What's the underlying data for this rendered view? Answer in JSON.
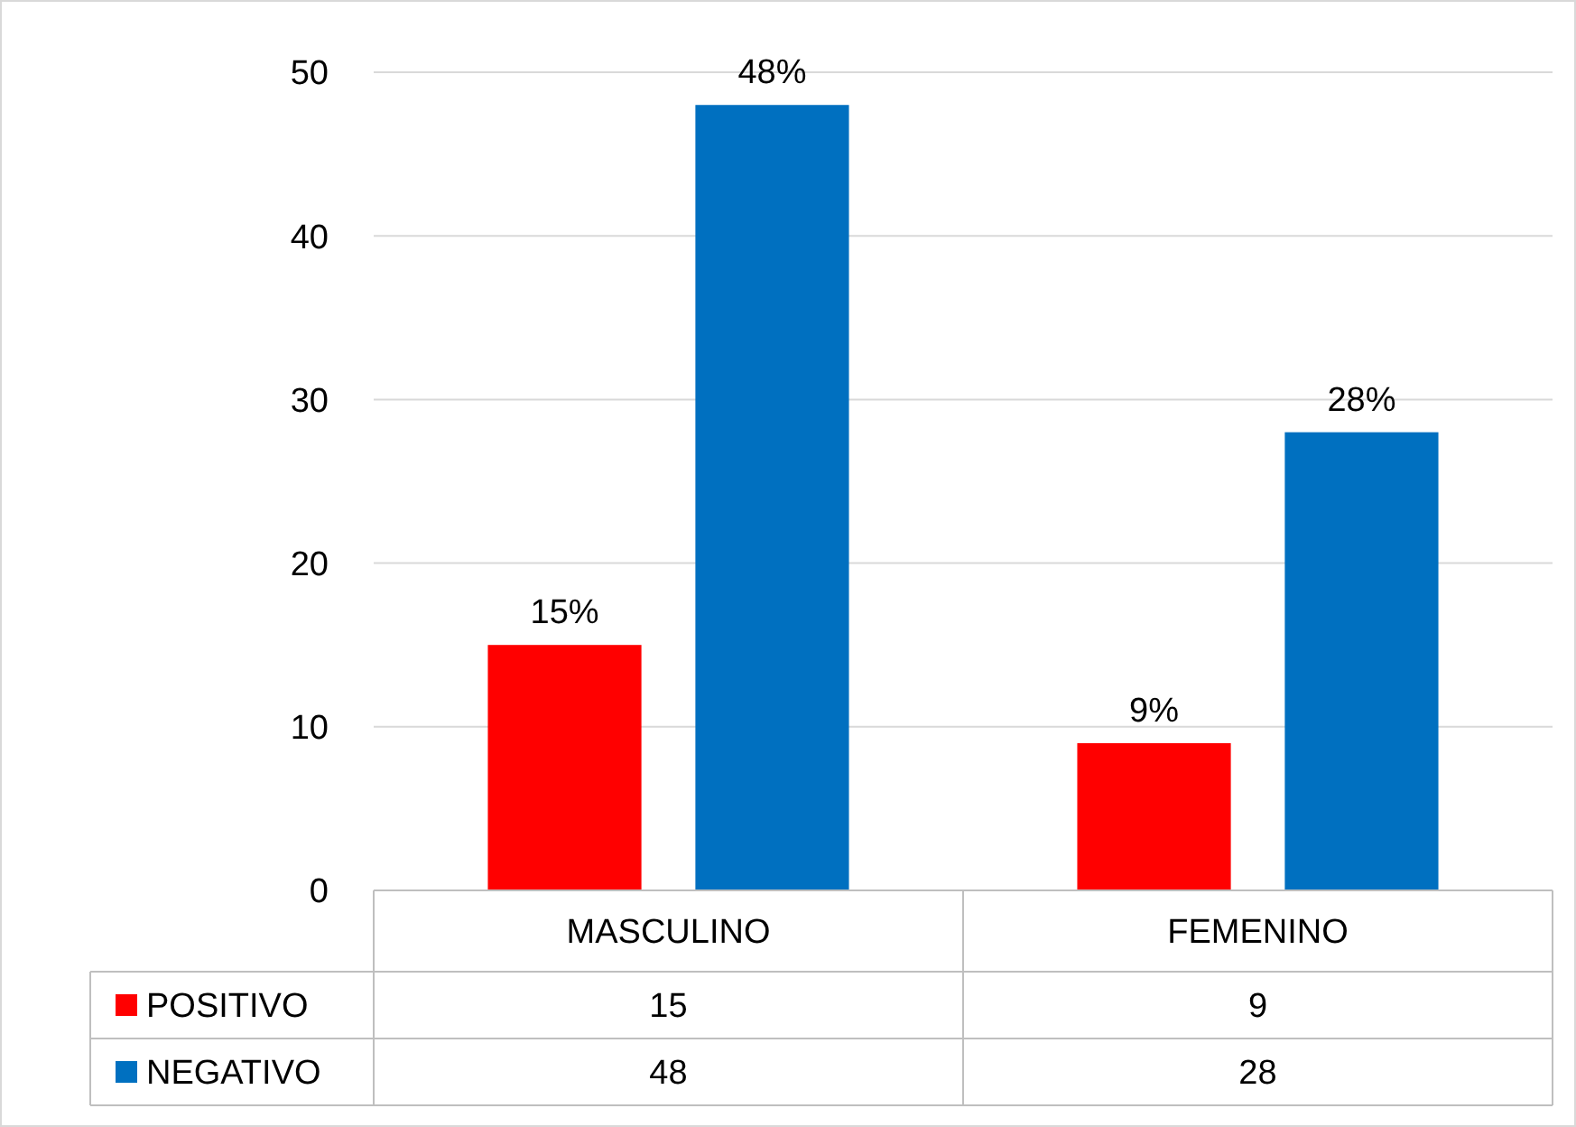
{
  "chart_data": {
    "type": "bar",
    "categories": [
      "MASCULINO",
      "FEMENINO"
    ],
    "series": [
      {
        "name": "POSITIVO",
        "color": "#ff0000",
        "values": [
          15,
          9
        ],
        "value_labels": [
          "15",
          "9"
        ]
      },
      {
        "name": "NEGATIVO",
        "color": "#0070c0",
        "values": [
          48,
          28
        ],
        "value_labels": [
          "48",
          "28"
        ]
      }
    ],
    "annotations": [
      "15%",
      "48%",
      "9%",
      "28%"
    ],
    "ylim": [
      0,
      50
    ],
    "yticks": [
      0,
      10,
      20,
      30,
      40,
      50
    ],
    "grid": "y",
    "legend": "bottom left",
    "data_labels": true
  }
}
